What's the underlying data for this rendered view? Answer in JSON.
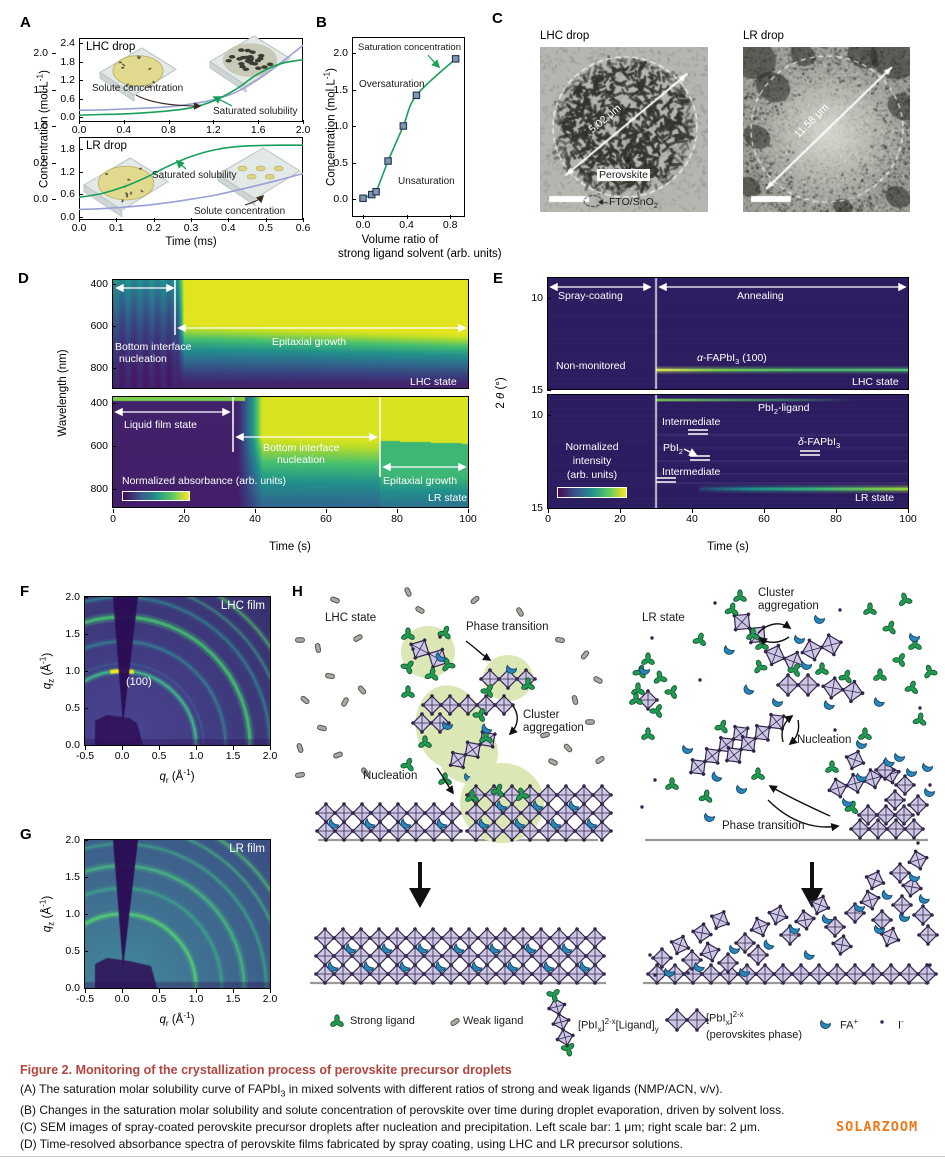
{
  "figure_width": 945,
  "figure_height": 1162,
  "colors": {
    "accent_green": "#16a05a",
    "curve_blue": "#9aa0d6",
    "marker_fill": "#7f96b2",
    "marker_edge": "#23304d",
    "caption_title": "#b1453f",
    "watermark_orange": "#f07818",
    "octahedron_purple": "#cdc6e4",
    "octahedron_edge": "#32254a",
    "strong_ligand_green": "#219b51",
    "weak_ligand_gray": "#aaaaa4",
    "fa_blue": "#2a85b8",
    "blob_green": "#dbe7b4",
    "substrate_gray": "#999999"
  },
  "panelA": {
    "label": "A",
    "ylabel_html": "Concentration (mol L<sup>-1</sup>)",
    "xlabel": "Time (ms)",
    "top": {
      "title": "LHC drop",
      "solute_label": "Solute concentration",
      "saturated_label": "Saturated solubility",
      "yticks": [
        "0.0",
        "0.6",
        "1.2",
        "1.8",
        "2.4"
      ],
      "xticks": [
        "0.0",
        "0.4",
        "0.8",
        "1.2",
        "1.6",
        "2.0"
      ]
    },
    "bottom": {
      "title": "LR drop",
      "saturated_label": "Saturated solubility",
      "solute_label": "Solute concentration",
      "yticks": [
        "0.0",
        "0.6",
        "1.2",
        "1.8"
      ],
      "xticks": [
        "0.0",
        "0.1",
        "0.2",
        "0.3",
        "0.4",
        "0.5",
        "0.6"
      ]
    }
  },
  "panelB": {
    "label": "B",
    "ylabel_html": "Concentration (mol L<sup>-1</sup>)",
    "xlabel_line1": "Volume ratio of",
    "xlabel_line2": "strong ligand solvent (arb. units)",
    "yticks": [
      "0.0",
      "0.5",
      "1.0",
      "1.5",
      "2.0"
    ],
    "xticks": [
      "0.0",
      "0.4",
      "0.8"
    ],
    "ann_saturation": "Saturation concentration",
    "ann_over": "Oversaturation",
    "ann_under": "Unsaturation"
  },
  "panelC": {
    "label": "C",
    "left_title": "LHC drop",
    "right_title": "LR drop",
    "left_measure": "5.02 μm",
    "right_measure": "11.58 μm",
    "perovskite_label": "Perovskite",
    "substrate_label_html": "FTO/SnO<sub>2</sub>"
  },
  "panelD": {
    "label": "D",
    "ylabel": "Wavelength (nm)",
    "xlabel": "Time (s)",
    "xticks": [
      "0",
      "20",
      "40",
      "60",
      "80",
      "100"
    ],
    "yticks": [
      "400",
      "600",
      "800"
    ],
    "colorbar_label": "Normalized absorbance (arb. units)",
    "top": {
      "state": "LHC state",
      "ann1a": "Bottom interface",
      "ann1b": "nucleation",
      "ann2": "Epitaxial growth"
    },
    "bottom": {
      "state": "LR state",
      "ann1": "Liquid film state",
      "ann2a": "Bottom interface",
      "ann2b": "nucleation",
      "ann3": "Epitaxial growth"
    }
  },
  "panelE": {
    "label": "E",
    "ylabel_html": "2 <i>θ</i> (°)",
    "xlabel": "Time (s)",
    "xticks": [
      "0",
      "20",
      "40",
      "60",
      "80",
      "100"
    ],
    "yticks": [
      "10",
      "15"
    ],
    "colorbar_label1": "Normalized",
    "colorbar_label2": "intensity",
    "colorbar_label3": "(arb. units)",
    "top": {
      "phase1": "Spray-coating",
      "phase2": "Annealing",
      "non_monitored": "Non-monitored",
      "peak_html": "<i>α</i>-FAPbI<sub>3</sub> (100)",
      "state": "LHC state"
    },
    "bottom": {
      "pbi2_ligand_html": "PbI<sub>2</sub>-ligand",
      "intermediate1": "Intermediate",
      "pbi2_html": "PbI<sub>2</sub>",
      "delta_html": "<i>δ</i>-FAPbI<sub>3</sub>",
      "intermediate2": "Intermediate",
      "state": "LR state"
    }
  },
  "panelF": {
    "label": "F",
    "title": "LHC film",
    "peak_label": "(100)",
    "ylabel_html": "<i>q</i><sub>z</sub> (Å<sup>-1</sup>)",
    "xlabel_html": "<i>q</i><sub>r</sub> (Å<sup>-1</sup>)",
    "yticks": [
      "0.0",
      "0.5",
      "1.0",
      "1.5",
      "2.0"
    ],
    "xticks": [
      "-0.5",
      "0.0",
      "0.5",
      "1.0",
      "1.5",
      "2.0"
    ]
  },
  "panelG": {
    "label": "G",
    "title": "LR film",
    "ylabel_html": "<i>q</i><sub>z</sub> (Å<sup>-1</sup>)",
    "xlabel_html": "<i>q</i><sub>r</sub> (Å<sup>-1</sup>)",
    "yticks": [
      "0.0",
      "0.5",
      "1.0",
      "1.5",
      "2.0"
    ],
    "xticks": [
      "-0.5",
      "0.0",
      "0.5",
      "1.0",
      "1.5",
      "2.0"
    ]
  },
  "panelH": {
    "label": "H",
    "lhc_state": "LHC state",
    "lr_state": "LR state",
    "phase_transition_left": "Phase transition",
    "cluster_aggregation_left": "Cluster aggregation",
    "nucleation_left": "Nucleation",
    "cluster_aggregation_right": "Cluster aggregation",
    "nucleation_right": "Nucleation",
    "phase_transition_right": "Phase transition",
    "legend": [
      {
        "icon": "strong-ligand-icon",
        "label_html": "Strong ligand"
      },
      {
        "icon": "weak-ligand-icon",
        "label_html": "Weak ligand"
      },
      {
        "icon": "pbix-ligand-icon",
        "label_html": "[PbI<sub>x</sub>]<sup>2-x</sup>[Ligand]<sub>y</sub>"
      },
      {
        "icon": "perovskite-phase-icon",
        "label_html": "[PbI<sub>x</sub>]<sup>2-x</sup><br>(perovskites phase)"
      },
      {
        "icon": "fa-cation-icon",
        "label_html": "FA<sup>+</sup>"
      },
      {
        "icon": "iodide-icon",
        "label_html": "I<sup>-</sup>"
      }
    ]
  },
  "caption": {
    "title": "Figure 2.  Monitoring of the crystallization process of perovskite precursor droplets",
    "line_a_html": "(A) The saturation molar solubility curve of FAPbI<sub>3</sub> in mixed solvents with different ratios of strong and weak ligands (NMP/ACN, v/v).",
    "line_b_html": "(B) Changes in the saturation molar solubility and solute concentration of perovskite over time during droplet evaporation, driven by solvent loss.",
    "line_c_html": "(C) SEM images of spray-coated perovskite precursor droplets after nucleation and precipitation. Left scale bar: 1 μm; right scale bar: 2 μm.",
    "line_d_html": "(D) Time-resolved absorbance spectra of perovskite films fabricated by spray coating, using LHC and LR precursor solutions."
  },
  "watermark": "SOLARZOOM",
  "chart_data": [
    {
      "id": "A-top",
      "type": "line",
      "title": "LHC drop",
      "xlabel": "Time (ms)",
      "ylabel": "Concentration (mol L-1)",
      "xlim": [
        0,
        2.0
      ],
      "ylim": [
        0,
        2.4
      ],
      "xticks": [
        0,
        0.4,
        0.8,
        1.2,
        1.6,
        2.0
      ],
      "yticks": [
        0,
        0.6,
        1.2,
        1.8,
        2.4
      ],
      "series": [
        {
          "name": "Solute concentration",
          "color": "#9aa0d6",
          "x": [
            0,
            0.2,
            0.4,
            0.6,
            0.8,
            1.0,
            1.2,
            1.4,
            1.6,
            1.8,
            2.0
          ],
          "y": [
            0.22,
            0.23,
            0.26,
            0.29,
            0.33,
            0.42,
            0.56,
            0.8,
            1.22,
            1.75,
            2.33
          ]
        },
        {
          "name": "Saturated solubility",
          "color": "#16a05a",
          "x": [
            0,
            0.2,
            0.4,
            0.6,
            0.8,
            1.0,
            1.2,
            1.4,
            1.6,
            1.8,
            2.0
          ],
          "y": [
            0.06,
            0.08,
            0.1,
            0.14,
            0.2,
            0.3,
            0.52,
            0.9,
            1.4,
            1.73,
            1.86
          ]
        }
      ]
    },
    {
      "id": "A-bottom",
      "type": "line",
      "title": "LR drop",
      "xlabel": "Time (ms)",
      "ylabel": "Concentration (mol L-1)",
      "xlim": [
        0,
        0.6
      ],
      "ylim": [
        0,
        2.1
      ],
      "xticks": [
        0,
        0.1,
        0.2,
        0.3,
        0.4,
        0.5,
        0.6
      ],
      "yticks": [
        0,
        0.6,
        1.2,
        1.8
      ],
      "series": [
        {
          "name": "Saturated solubility",
          "color": "#16a05a",
          "x": [
            0,
            0.06,
            0.12,
            0.18,
            0.24,
            0.3,
            0.36,
            0.42,
            0.48,
            0.54,
            0.6
          ],
          "y": [
            0.52,
            0.62,
            0.8,
            1.05,
            1.35,
            1.6,
            1.77,
            1.86,
            1.89,
            1.9,
            1.9
          ]
        },
        {
          "name": "Solute concentration",
          "color": "#9aa0d6",
          "x": [
            0,
            0.06,
            0.12,
            0.18,
            0.24,
            0.3,
            0.36,
            0.42,
            0.48,
            0.54,
            0.6
          ],
          "y": [
            0.2,
            0.22,
            0.26,
            0.31,
            0.38,
            0.47,
            0.57,
            0.7,
            0.84,
            0.99,
            1.15
          ]
        }
      ]
    },
    {
      "id": "B",
      "type": "scatter",
      "xlabel": "Volume ratio of strong ligand solvent (arb. units)",
      "ylabel": "Concentration (mol L-1)",
      "xlim": [
        -0.05,
        0.95
      ],
      "ylim": [
        -0.15,
        2.25
      ],
      "xticks": [
        0,
        0.4,
        0.8
      ],
      "yticks": [
        0,
        0.5,
        1.0,
        1.5,
        2.0
      ],
      "curve_color": "#16a05a",
      "points": [
        [
          0,
          0.01
        ],
        [
          0.08,
          0.06
        ],
        [
          0.12,
          0.1
        ],
        [
          0.23,
          0.52
        ],
        [
          0.37,
          1.0
        ],
        [
          0.49,
          1.42
        ],
        [
          0.85,
          1.92
        ]
      ],
      "annotations": [
        "Saturation concentration",
        "Oversaturation",
        "Unsaturation"
      ]
    },
    {
      "id": "D-LHC",
      "type": "heatmap",
      "title": "LHC state",
      "xlabel": "Time (s)",
      "ylabel": "Wavelength (nm)",
      "xlim": [
        0,
        100
      ],
      "ylim": [
        400,
        880
      ],
      "colorbar": "Normalized absorbance (arb. units)",
      "phases": [
        {
          "label": "Bottom interface nucleation",
          "t_range": [
            0,
            18
          ]
        },
        {
          "label": "Epitaxial growth",
          "t_range": [
            18,
            100
          ]
        }
      ]
    },
    {
      "id": "D-LR",
      "type": "heatmap",
      "title": "LR state",
      "xlabel": "Time (s)",
      "ylabel": "Wavelength (nm)",
      "xlim": [
        0,
        100
      ],
      "ylim": [
        400,
        880
      ],
      "colorbar": "Normalized absorbance (arb. units)",
      "phases": [
        {
          "label": "Liquid film state",
          "t_range": [
            0,
            35
          ]
        },
        {
          "label": "Bottom interface nucleation",
          "t_range": [
            35,
            75
          ]
        },
        {
          "label": "Epitaxial growth",
          "t_range": [
            75,
            100
          ]
        }
      ]
    },
    {
      "id": "E-LHC",
      "type": "heatmap",
      "title": "LHC state",
      "xlabel": "Time (s)",
      "ylabel": "2 theta (deg)",
      "xlim": [
        0,
        100
      ],
      "ylim": [
        8.9,
        15
      ],
      "colorbar": "Normalized intensity (arb. units)",
      "phases": [
        {
          "label": "Spray-coating (Non-monitored)",
          "t_range": [
            0,
            30
          ]
        },
        {
          "label": "Annealing",
          "t_range": [
            30,
            100
          ]
        }
      ],
      "features": [
        {
          "label": "alpha-FAPbI3 (100)",
          "two_theta": 13.9,
          "t_range": [
            30,
            100
          ]
        }
      ]
    },
    {
      "id": "E-LR",
      "type": "heatmap",
      "title": "LR state",
      "xlabel": "Time (s)",
      "ylabel": "2 theta (deg)",
      "xlim": [
        0,
        100
      ],
      "ylim": [
        8.9,
        15
      ],
      "colorbar": "Normalized intensity (arb. units)",
      "features": [
        {
          "label": "PbI2-ligand",
          "two_theta": 9.3,
          "t_range": [
            30,
            80
          ]
        },
        {
          "label": "Intermediate",
          "two_theta": 11.0,
          "t_range": [
            30,
            100
          ]
        },
        {
          "label": "PbI2",
          "two_theta": 12.5,
          "t_range": [
            30,
            100
          ]
        },
        {
          "label": "delta-FAPbI3",
          "two_theta": 12.3,
          "t_range": [
            60,
            100
          ]
        },
        {
          "label": "Intermediate",
          "two_theta": 13.6,
          "t_range": [
            30,
            100
          ]
        },
        {
          "label": "perovskite",
          "two_theta": 14.0,
          "t_range": [
            45,
            100
          ]
        }
      ]
    },
    {
      "id": "F",
      "type": "heatmap",
      "title": "LHC film",
      "xlabel": "qr (A-1)",
      "ylabel": "qz (A-1)",
      "xlim": [
        -0.5,
        2.0
      ],
      "ylim": [
        0,
        2.0
      ],
      "rings_q": [
        1.0,
        1.4,
        1.73,
        2.0,
        2.2,
        2.4
      ],
      "labeled_peak": {
        "label": "(100)",
        "q": 1.0,
        "orientation": "out-of-plane spot"
      }
    },
    {
      "id": "G",
      "type": "heatmap",
      "title": "LR film",
      "xlabel": "qr (A-1)",
      "ylabel": "qz (A-1)",
      "xlim": [
        -0.5,
        2.0
      ],
      "ylim": [
        0,
        2.0
      ],
      "rings_q": [
        1.0,
        1.35,
        1.65,
        1.95,
        2.2,
        2.4
      ],
      "labeled_peak": null
    }
  ]
}
